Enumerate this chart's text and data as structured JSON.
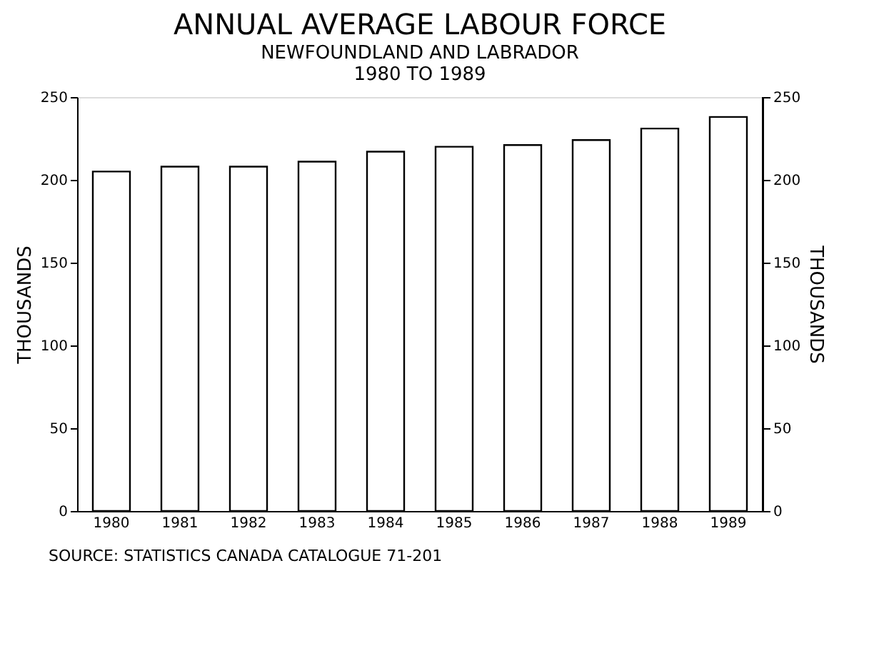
{
  "chart_data": {
    "type": "bar",
    "title": "ANNUAL AVERAGE LABOUR FORCE",
    "subtitle": "NEWFOUNDLAND AND LABRADOR\n1980 TO 1989",
    "categories": [
      "1980",
      "1981",
      "1982",
      "1983",
      "1984",
      "1985",
      "1986",
      "1987",
      "1988",
      "1989"
    ],
    "values": [
      205,
      208,
      208,
      211,
      217,
      220,
      221,
      224,
      231,
      238
    ],
    "color": "#000000",
    "ylabel": "THOUSANDS",
    "y2label": "THOUSANDS",
    "ylim": [
      0,
      250
    ],
    "yticks": [
      0,
      50,
      100,
      150,
      200,
      250
    ],
    "y2lim": [
      0,
      250
    ],
    "y2ticks": [
      0,
      50,
      100,
      150,
      200,
      250
    ],
    "annotations": [
      "SOURCE:  STATISTICS CANADA CATALOGUE 71-201"
    ],
    "grid": false
  }
}
